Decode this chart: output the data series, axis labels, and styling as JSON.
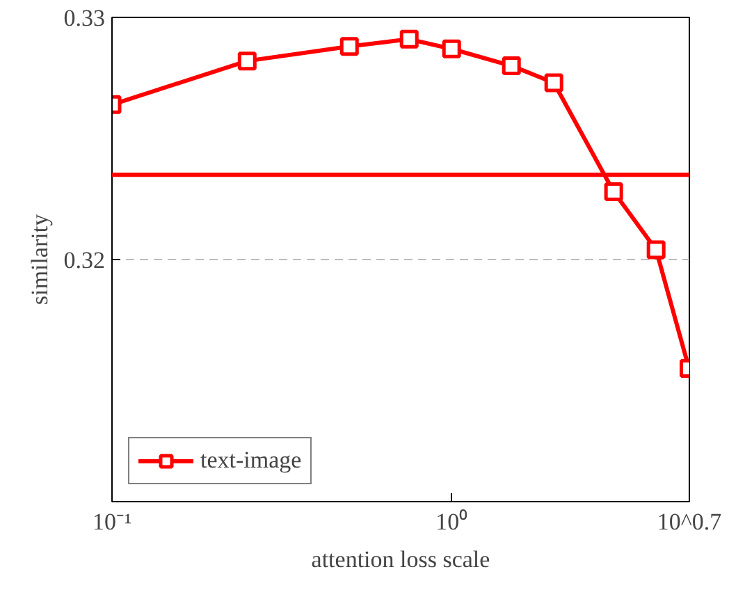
{
  "chart_data": {
    "type": "line",
    "xlabel": "attention loss scale",
    "ylabel": "similarity",
    "x": [
      0.1,
      0.25,
      0.5,
      0.75,
      1,
      1.5,
      2,
      3,
      4,
      5
    ],
    "series": [
      {
        "name": "text-image",
        "color": "#ff0000",
        "values": [
          0.3264,
          0.3282,
          0.3288,
          0.3291,
          0.3287,
          0.328,
          0.3273,
          0.3228,
          0.3204,
          0.3155
        ]
      }
    ],
    "ref_lines": [
      {
        "axis": "y",
        "value": 0.3235,
        "color": "#ff0000",
        "line_style": "solid"
      }
    ],
    "log": "x",
    "xlim": [
      0.1,
      5.0119
    ],
    "xticks": [
      {
        "value": 0.1,
        "label": "10⁻¹"
      },
      {
        "value": 1,
        "label": "10⁰"
      },
      {
        "value": 5.0119,
        "label": "10^0.7"
      }
    ],
    "ylim": [
      0.31,
      0.33
    ],
    "yticks": [
      0.32,
      0.33
    ],
    "grid": "y",
    "legend": "bottom left",
    "marker": "square",
    "line_style": "solid"
  }
}
